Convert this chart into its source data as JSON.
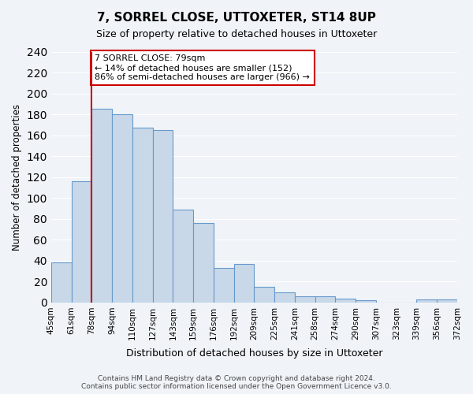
{
  "title": "7, SORREL CLOSE, UTTOXETER, ST14 8UP",
  "subtitle": "Size of property relative to detached houses in Uttoxeter",
  "xlabel": "Distribution of detached houses by size in Uttoxeter",
  "ylabel": "Number of detached properties",
  "bin_labels": [
    "45sqm",
    "61sqm",
    "78sqm",
    "94sqm",
    "110sqm",
    "127sqm",
    "143sqm",
    "159sqm",
    "176sqm",
    "192sqm",
    "209sqm",
    "225sqm",
    "241sqm",
    "258sqm",
    "274sqm",
    "290sqm",
    "307sqm",
    "323sqm",
    "339sqm",
    "356sqm",
    "372sqm"
  ],
  "bar_values": [
    38,
    116,
    185,
    180,
    167,
    165,
    89,
    76,
    33,
    37,
    15,
    10,
    6,
    6,
    4,
    2,
    0,
    0,
    3,
    3
  ],
  "bar_color": "#c8d8e8",
  "bar_edge_color": "#6699cc",
  "marker_index": 2,
  "marker_color": "#cc0000",
  "annotation_title": "7 SORREL CLOSE: 79sqm",
  "annotation_line1": "← 14% of detached houses are smaller (152)",
  "annotation_line2": "86% of semi-detached houses are larger (966) →",
  "annotation_box_color": "#ffffff",
  "annotation_box_edge": "#cc0000",
  "ylim": [
    0,
    240
  ],
  "yticks": [
    0,
    20,
    40,
    60,
    80,
    100,
    120,
    140,
    160,
    180,
    200,
    220,
    240
  ],
  "footer_line1": "Contains HM Land Registry data © Crown copyright and database right 2024.",
  "footer_line2": "Contains public sector information licensed under the Open Government Licence v3.0.",
  "background_color": "#f0f4f8"
}
